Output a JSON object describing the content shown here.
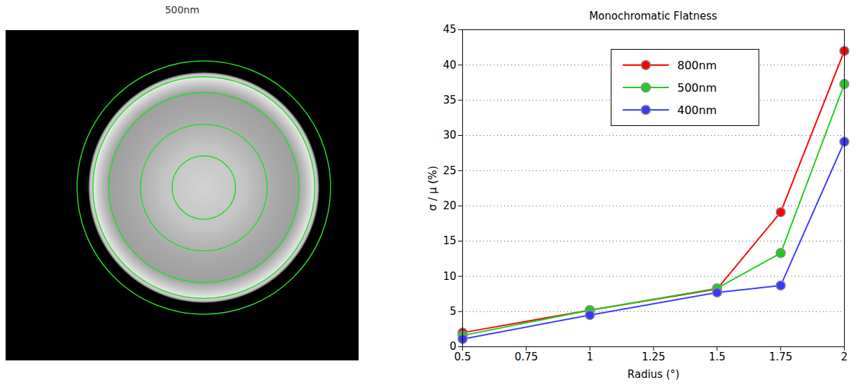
{
  "image_panel": {
    "title": "500nm",
    "circle_radii": [
      0.5,
      1,
      1.5,
      1.75,
      2
    ]
  },
  "chart_data": {
    "type": "line",
    "title": "Monochromatic Flatness",
    "x_label": "Radius (°)",
    "y_label": "σ / μ (%)",
    "x": [
      0.5,
      1,
      1.5,
      1.75,
      2
    ],
    "series": [
      {
        "name": "800nm",
        "color": "#ff0000",
        "marker": "circle",
        "line_style": "solid",
        "values": [
          2.0,
          5.2,
          8.2,
          19.1,
          42.0
        ]
      },
      {
        "name": "500nm",
        "color": "#1fcc1f",
        "marker": "circle",
        "line_style": "solid",
        "values": [
          1.6,
          5.2,
          8.3,
          13.3,
          37.3
        ]
      },
      {
        "name": "400nm",
        "color": "#3a3aff",
        "marker": "circle",
        "line_style": "solid",
        "values": [
          1.1,
          4.5,
          7.7,
          8.7,
          29.1
        ]
      }
    ],
    "xlim": [
      0.5,
      2
    ],
    "xticks": [
      0.5,
      0.75,
      1,
      1.25,
      1.5,
      1.75,
      2
    ],
    "ylim": [
      0,
      45
    ],
    "yticks": [
      0,
      5,
      10,
      15,
      20,
      25,
      30,
      35,
      40,
      45
    ],
    "grid": true,
    "legend": "upper center"
  }
}
